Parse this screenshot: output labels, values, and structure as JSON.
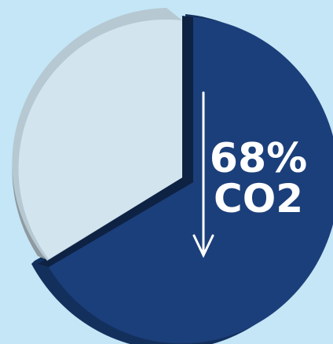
{
  "chart_data": {
    "type": "pie",
    "title": "",
    "slices": [
      {
        "value": 68,
        "color": "#1b3f7a"
      },
      {
        "value": 32,
        "color": "#d2e5ef"
      }
    ],
    "annotation": {
      "percent_label": "68%",
      "unit_label": "CO2",
      "arrow": "down"
    }
  },
  "colors": {
    "background": "#c4e6f6",
    "primary_slice": "#1b3f7a",
    "secondary_slice": "#d2e5ef",
    "secondary_side": "#8e9aa0",
    "label": "#ffffff"
  }
}
